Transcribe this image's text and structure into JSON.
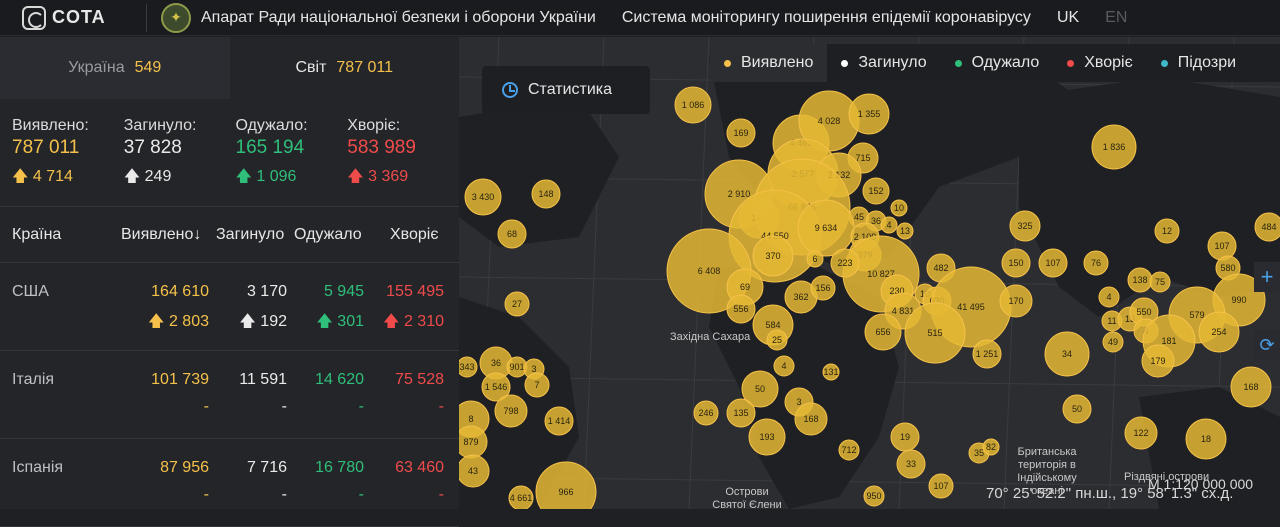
{
  "header": {
    "logo_text": "COTA",
    "org_title": "Апарат Ради національної безпеки і оборони України",
    "system_title": "Система моніторингу поширення епідемії коронавірусу",
    "lang_active": "UK",
    "lang_other": "EN"
  },
  "tabs": [
    {
      "label": "Україна",
      "value": "549",
      "active": false
    },
    {
      "label": "Світ",
      "value": "787 011",
      "active": true
    }
  ],
  "stats": [
    {
      "label": "Виявлено:",
      "value": "787 011",
      "delta": "4 714",
      "color": "#f5c14a"
    },
    {
      "label": "Загинуло:",
      "value": "37 828",
      "delta": "249",
      "color": "#eaeaea"
    },
    {
      "label": "Одужало:",
      "value": "165 194",
      "delta": "1 096",
      "color": "#2fbf7a"
    },
    {
      "label": "Хворіє:",
      "value": "583 989",
      "delta": "3 369",
      "color": "#ef4b4b"
    }
  ],
  "table": {
    "headers": [
      "Країна",
      "Виявлено",
      "Загинуло",
      "Одужало",
      "Хворіє"
    ],
    "sort_icon": "arrow-down-icon",
    "rows": [
      {
        "country": "США",
        "confirmed": "164 610",
        "deaths": "3 170",
        "recovered": "5 945",
        "sick": "155 495",
        "d_confirmed": "2 803",
        "d_deaths": "192",
        "d_recovered": "301",
        "d_sick": "2 310"
      },
      {
        "country": "Італія",
        "confirmed": "101 739",
        "deaths": "11 591",
        "recovered": "14 620",
        "sick": "75 528",
        "d_confirmed": "-",
        "d_deaths": "-",
        "d_recovered": "-",
        "d_sick": "-"
      },
      {
        "country": "Іспанія",
        "confirmed": "87 956",
        "deaths": "7 716",
        "recovered": "16 780",
        "sick": "63 460",
        "d_confirmed": "-",
        "d_deaths": "-",
        "d_recovered": "-",
        "d_sick": "-"
      }
    ]
  },
  "map": {
    "stats_button": "Статистика",
    "legend": [
      {
        "label": "Виявлено",
        "color": "#f5c14a",
        "selected": true
      },
      {
        "label": "Загинуло",
        "color": "#ffffff",
        "selected": false
      },
      {
        "label": "Одужало",
        "color": "#2fbf7a",
        "selected": false
      },
      {
        "label": "Хворіє",
        "color": "#ef4b4b",
        "selected": false
      },
      {
        "label": "Підозри",
        "color": "#3fb8c8",
        "selected": false
      }
    ],
    "labels": {
      "sahara": "Західна Сахара",
      "biot": "Британська територія в Індійському океані",
      "st_helena": "Острови Святої Єлени",
      "christmas": "Різдвяні острови"
    },
    "coords": "70° 25' 52.2\" пн.ш., 19° 58' 1.3\" сх.д.",
    "scale": "M 1:120 000 000",
    "bubbles": [
      "1 086",
      "169",
      "4 462",
      "4 028",
      "1 355",
      "1 836",
      "715",
      "2 577",
      "2 910",
      "2 132",
      "152",
      "3 430",
      "148",
      "141",
      "66 885",
      "45",
      "36",
      "4",
      "10",
      "325",
      "12",
      "107",
      "484",
      "68",
      "44 550",
      "9 634",
      "2 109",
      "13",
      "370",
      "379",
      "482",
      "10 827",
      "150",
      "107",
      "76",
      "138",
      "75",
      "580",
      "6 408",
      "6",
      "223",
      "230",
      "10",
      "4",
      "990",
      "27",
      "69",
      "362",
      "156",
      "630",
      "4 831",
      "41 495",
      "170",
      "11",
      "13",
      "550",
      "579",
      "556",
      "584",
      "656",
      "515",
      "49",
      "4",
      "181",
      "254",
      "343",
      "36",
      "901",
      "3",
      "7",
      "34",
      "1 251",
      "179",
      "168",
      "1 546",
      "50",
      "246",
      "4",
      "25",
      "3",
      "131",
      "8",
      "798",
      "135",
      "168",
      "193",
      "712",
      "19",
      "33",
      "50",
      "122",
      "18",
      "879",
      "1 414",
      "966",
      "43",
      "4 661",
      "950",
      "107",
      "35",
      "82",
      "10",
      "3"
    ]
  }
}
